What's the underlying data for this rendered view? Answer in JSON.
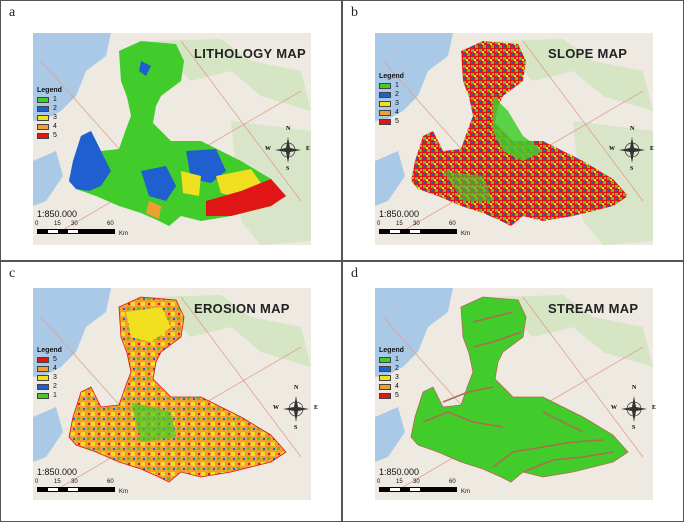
{
  "figure": {
    "panels": [
      {
        "letter": "a",
        "title": "LITHOLOGY MAP",
        "legend_title": "Legend",
        "legend_items": [
          {
            "label": "1",
            "color": "#41cc2b"
          },
          {
            "label": "2",
            "color": "#1f5fcf"
          },
          {
            "label": "3",
            "color": "#f0e020"
          },
          {
            "label": "4",
            "color": "#f0a030"
          },
          {
            "label": "5",
            "color": "#e01515"
          }
        ]
      },
      {
        "letter": "b",
        "title": "SLOPE MAP",
        "legend_title": "Legend",
        "legend_items": [
          {
            "label": "1",
            "color": "#41cc2b"
          },
          {
            "label": "2",
            "color": "#1f5fcf"
          },
          {
            "label": "3",
            "color": "#f0e020"
          },
          {
            "label": "4",
            "color": "#f0a030"
          },
          {
            "label": "5",
            "color": "#e01515"
          }
        ]
      },
      {
        "letter": "c",
        "title": "EROSION MAP",
        "legend_title": "Legend",
        "legend_items": [
          {
            "label": "5",
            "color": "#e01515"
          },
          {
            "label": "4",
            "color": "#f0a030"
          },
          {
            "label": "3",
            "color": "#f0e020"
          },
          {
            "label": "2",
            "color": "#1f5fcf"
          },
          {
            "label": "1",
            "color": "#41cc2b"
          }
        ]
      },
      {
        "letter": "d",
        "title": "STREAM MAP",
        "legend_title": "Legend",
        "legend_items": [
          {
            "label": "1",
            "color": "#41cc2b"
          },
          {
            "label": "2",
            "color": "#1f5fcf"
          },
          {
            "label": "3",
            "color": "#f0e020"
          },
          {
            "label": "4",
            "color": "#f0a030"
          },
          {
            "label": "5",
            "color": "#e01515"
          }
        ]
      }
    ],
    "scale": {
      "ratio": "1:850.000",
      "ticks": [
        "0",
        "15",
        "30",
        "60"
      ],
      "unit": "Km"
    },
    "compass": {
      "n": "N",
      "s": "S",
      "e": "E",
      "w": "W"
    },
    "colors": {
      "basemap_land": "#eeeae2",
      "basemap_green": "#cfe3bd",
      "water": "#a9c9e6",
      "road": "#e0a090",
      "stream": "#b06a50"
    }
  }
}
